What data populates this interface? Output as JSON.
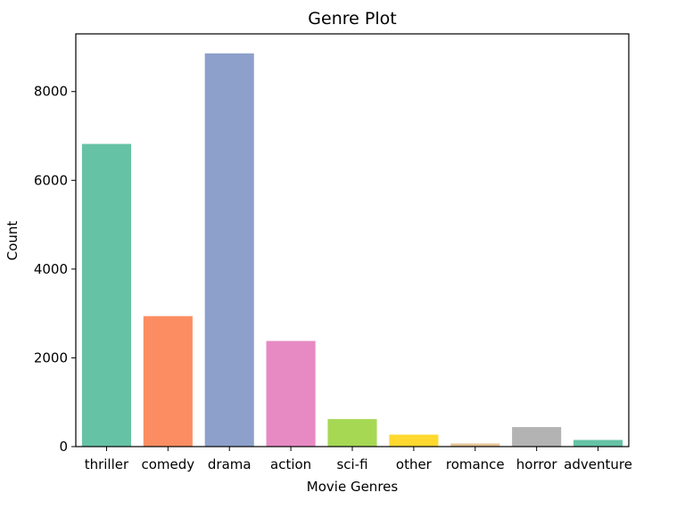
{
  "chart_data": {
    "type": "bar",
    "title": "Genre Plot",
    "xlabel": "Movie Genres",
    "ylabel": "Count",
    "categories": [
      "thriller",
      "comedy",
      "drama",
      "action",
      "sci-fi",
      "other",
      "romance",
      "horror",
      "adventure"
    ],
    "values": [
      6820,
      2940,
      8860,
      2380,
      620,
      270,
      70,
      440,
      150
    ],
    "colors": [
      "#66c2a5",
      "#fc8d62",
      "#8da0cb",
      "#e78ac3",
      "#a6d854",
      "#ffd92f",
      "#e5c494",
      "#b3b3b3",
      "#66c2a5"
    ],
    "ylim": [
      0,
      9300
    ],
    "yticks": [
      0,
      2000,
      4000,
      6000,
      8000
    ],
    "grid": false,
    "legend": "none"
  }
}
